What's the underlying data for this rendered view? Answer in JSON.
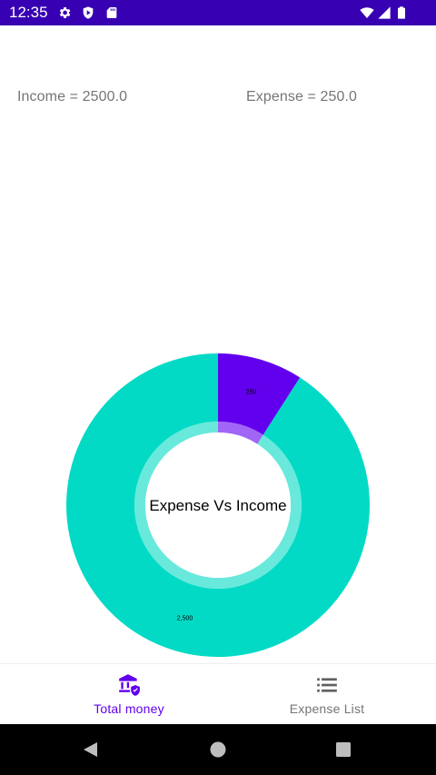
{
  "status_bar": {
    "time": "12:35",
    "background": "#3700b3",
    "left_icons": [
      "gear-icon",
      "shield-play-icon",
      "sd-card-icon"
    ],
    "right_icons": [
      "wifi-icon",
      "signal-icon",
      "battery-icon"
    ]
  },
  "summary": {
    "income": "Income = 2500.0",
    "expense": "Expense = 250.0"
  },
  "chart_data": {
    "type": "pie",
    "style": "donut",
    "title": "Expense Vs Income",
    "slices": [
      {
        "label": "250",
        "value": 250,
        "color": "#6200ee"
      },
      {
        "label": "2,500",
        "value": 2500,
        "color": "#03dac5"
      }
    ]
  },
  "bottom_nav": {
    "items": [
      {
        "label": "Total money",
        "icon": "bank-shield-icon",
        "selected": true
      },
      {
        "label": "Expense List",
        "icon": "list-icon",
        "selected": false
      }
    ],
    "accent": "#6200ee",
    "inactive_color": "#757575"
  },
  "system_nav": {
    "buttons": [
      "back-icon",
      "home-icon",
      "recents-icon"
    ]
  }
}
